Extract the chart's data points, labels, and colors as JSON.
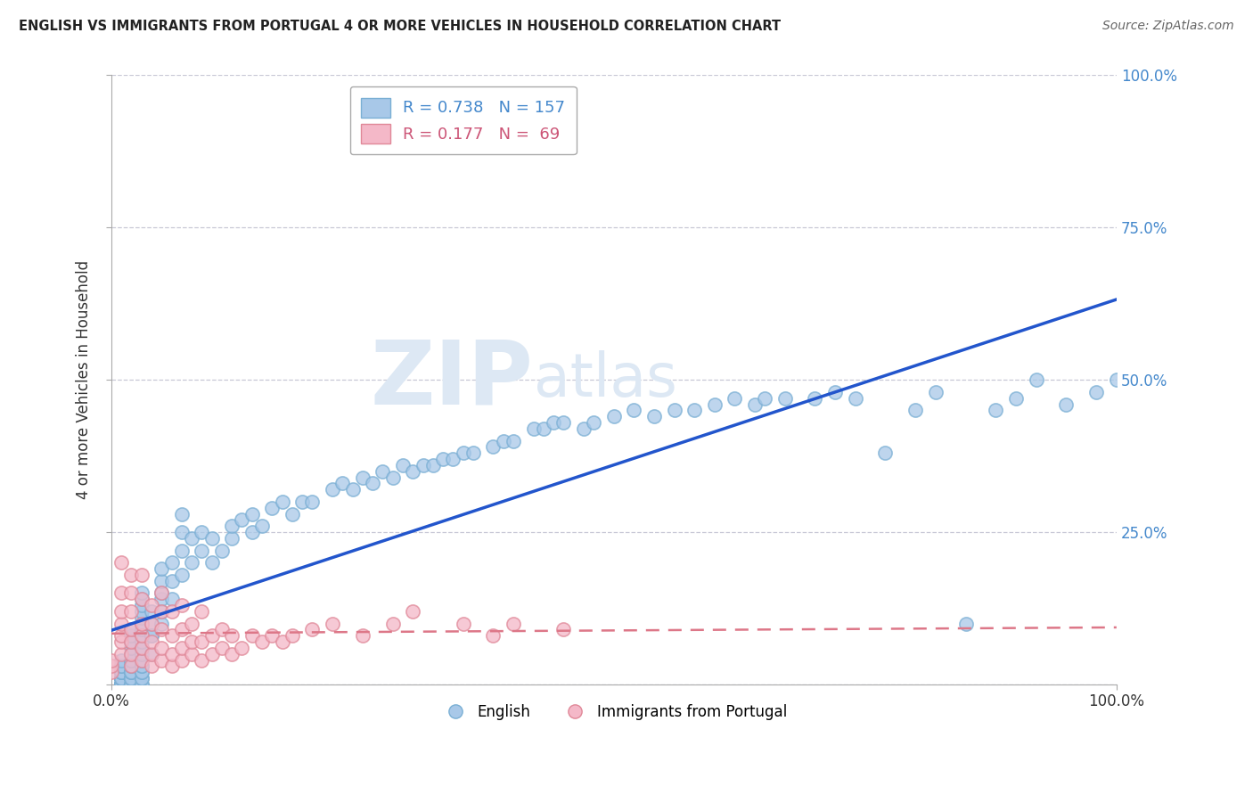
{
  "title": "ENGLISH VS IMMIGRANTS FROM PORTUGAL 4 OR MORE VEHICLES IN HOUSEHOLD CORRELATION CHART",
  "source": "Source: ZipAtlas.com",
  "ylabel": "4 or more Vehicles in Household",
  "english_color": "#a8c8e8",
  "english_edge_color": "#7aafd4",
  "portugal_color": "#f4b8c8",
  "portugal_edge_color": "#e08898",
  "english_line_color": "#2255cc",
  "portugal_line_color": "#dd7788",
  "background_color": "#ffffff",
  "grid_color": "#bbbbcc",
  "watermark_color": "#dde8f4",
  "R_english": 0.738,
  "N_english": 157,
  "R_portugal": 0.177,
  "N_portugal": 69,
  "legend_text_english": "R = 0.738   N = 157",
  "legend_text_portugal": "R = 0.177   N =  69",
  "legend_color_english": "#4488cc",
  "legend_color_portugal": "#cc5577",
  "bottom_label_english": "English",
  "bottom_label_portugal": "Immigrants from Portugal",
  "xlim": [
    0,
    100
  ],
  "ylim": [
    0,
    100
  ],
  "xtick_positions": [
    0,
    100
  ],
  "xtick_labels": [
    "0.0%",
    "100.0%"
  ],
  "ytick_positions": [
    0,
    25,
    50,
    75,
    100
  ],
  "ytick_labels": [
    "",
    "25.0%",
    "50.0%",
    "75.0%",
    "100.0%"
  ],
  "english_x": [
    1,
    1,
    1,
    1,
    1,
    1,
    1,
    1,
    1,
    1,
    1,
    1,
    1,
    1,
    1,
    1,
    1,
    1,
    1,
    1,
    2,
    2,
    2,
    2,
    2,
    2,
    2,
    2,
    2,
    2,
    2,
    2,
    2,
    2,
    2,
    2,
    2,
    2,
    2,
    2,
    3,
    3,
    3,
    3,
    3,
    3,
    3,
    3,
    3,
    3,
    3,
    3,
    3,
    3,
    3,
    3,
    3,
    3,
    3,
    3,
    4,
    4,
    4,
    4,
    4,
    5,
    5,
    5,
    5,
    5,
    5,
    6,
    6,
    6,
    7,
    7,
    7,
    7,
    8,
    8,
    9,
    9,
    10,
    10,
    11,
    12,
    12,
    13,
    14,
    14,
    15,
    16,
    17,
    18,
    19,
    20,
    22,
    23,
    24,
    25,
    26,
    27,
    28,
    29,
    30,
    31,
    32,
    33,
    34,
    35,
    36,
    38,
    39,
    40,
    42,
    43,
    44,
    45,
    47,
    48,
    50,
    52,
    54,
    56,
    58,
    60,
    62,
    64,
    65,
    67,
    70,
    72,
    74,
    77,
    80,
    82,
    85,
    88,
    90,
    92,
    95,
    98,
    100
  ],
  "english_y": [
    0,
    0,
    0,
    0,
    0,
    0,
    0,
    0,
    1,
    1,
    1,
    1,
    1,
    2,
    2,
    2,
    2,
    3,
    3,
    4,
    0,
    0,
    0,
    1,
    1,
    1,
    2,
    2,
    2,
    3,
    3,
    4,
    4,
    5,
    5,
    6,
    7,
    7,
    8,
    9,
    0,
    0,
    1,
    1,
    2,
    2,
    3,
    3,
    4,
    5,
    6,
    7,
    8,
    9,
    10,
    11,
    12,
    13,
    14,
    15,
    5,
    8,
    10,
    12,
    8,
    10,
    12,
    14,
    15,
    17,
    19,
    14,
    17,
    20,
    18,
    22,
    25,
    28,
    20,
    24,
    22,
    25,
    20,
    24,
    22,
    24,
    26,
    27,
    25,
    28,
    26,
    29,
    30,
    28,
    30,
    30,
    32,
    33,
    32,
    34,
    33,
    35,
    34,
    36,
    35,
    36,
    36,
    37,
    37,
    38,
    38,
    39,
    40,
    40,
    42,
    42,
    43,
    43,
    42,
    43,
    44,
    45,
    44,
    45,
    45,
    46,
    47,
    46,
    47,
    47,
    47,
    48,
    47,
    38,
    45,
    48,
    10,
    45,
    47,
    50,
    46,
    48,
    50
  ],
  "portugal_x": [
    0,
    0,
    0,
    1,
    1,
    1,
    1,
    1,
    1,
    1,
    2,
    2,
    2,
    2,
    2,
    2,
    2,
    3,
    3,
    3,
    3,
    3,
    3,
    4,
    4,
    4,
    4,
    4,
    5,
    5,
    5,
    5,
    5,
    6,
    6,
    6,
    6,
    7,
    7,
    7,
    7,
    8,
    8,
    8,
    9,
    9,
    9,
    10,
    10,
    11,
    11,
    12,
    12,
    13,
    14,
    15,
    16,
    17,
    18,
    20,
    22,
    25,
    28,
    30,
    35,
    38,
    40,
    45
  ],
  "portugal_y": [
    2,
    3,
    4,
    5,
    7,
    8,
    10,
    12,
    15,
    20,
    3,
    5,
    7,
    9,
    12,
    15,
    18,
    4,
    6,
    8,
    10,
    14,
    18,
    3,
    5,
    7,
    10,
    13,
    4,
    6,
    9,
    12,
    15,
    3,
    5,
    8,
    12,
    4,
    6,
    9,
    13,
    5,
    7,
    10,
    4,
    7,
    12,
    5,
    8,
    6,
    9,
    5,
    8,
    6,
    8,
    7,
    8,
    7,
    8,
    9,
    10,
    8,
    10,
    12,
    10,
    8,
    10,
    9
  ]
}
